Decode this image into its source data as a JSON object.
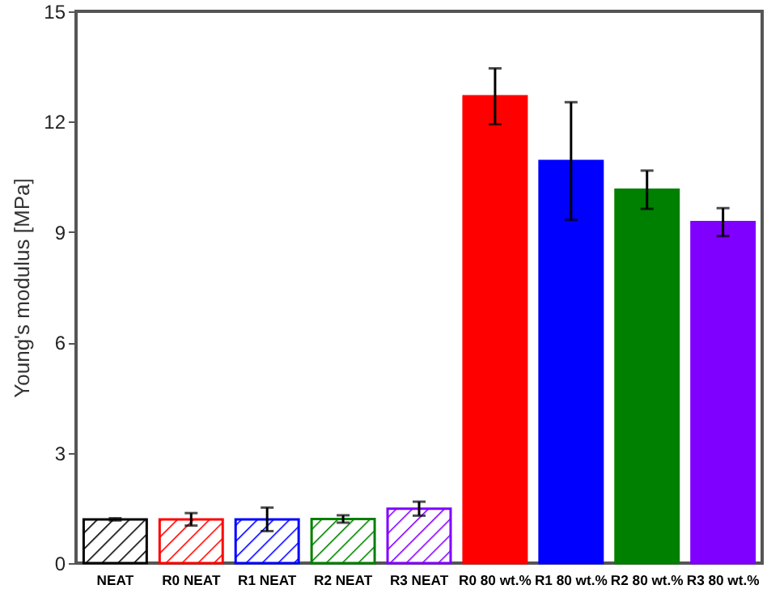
{
  "chart_data": {
    "type": "bar",
    "ylabel": "Young's modulus  [MPa]",
    "categories": [
      "NEAT",
      "R0 NEAT",
      "R1 NEAT",
      "R2 NEAT",
      "R3 NEAT",
      "R0 80 wt.%",
      "R1 80 wt.%",
      "R2 80 wt.%",
      "R3 80 wt.%"
    ],
    "series": [
      {
        "values": [
          1.19,
          1.19,
          1.19,
          1.2,
          1.48,
          null,
          null,
          null,
          null
        ],
        "colors": [
          "#000000",
          "#ff0000",
          "#0000ff",
          "#008000",
          "#8000ff",
          null,
          null,
          null,
          null
        ],
        "errors": [
          0.03,
          0.17,
          0.32,
          0.1,
          0.19,
          null,
          null,
          null,
          null
        ]
      },
      {
        "values": [
          null,
          null,
          null,
          null,
          null,
          12.69,
          10.93,
          10.15,
          9.27
        ],
        "colors": [
          null,
          null,
          null,
          null,
          null,
          "#ff0000",
          "#0000ff",
          "#008000",
          "#8000ff"
        ],
        "errors": [
          null,
          null,
          null,
          null,
          null,
          0.76,
          1.6,
          0.52,
          0.38
        ]
      }
    ],
    "ylim": [
      0,
      15
    ],
    "yticks": [
      0,
      3,
      6,
      9,
      12,
      15
    ],
    "grid": false
  }
}
